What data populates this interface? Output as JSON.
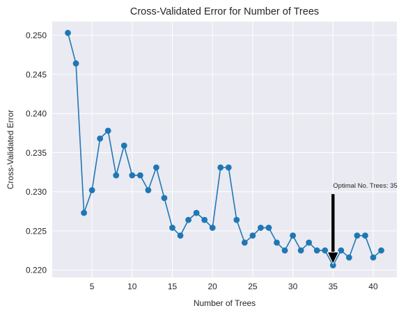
{
  "chart_data": {
    "type": "line",
    "title": "Cross-Validated Error for Number of Trees",
    "xlabel": "Number of Trees",
    "ylabel": "Cross-Validated Error",
    "xlim": [
      0.05,
      42.95
    ],
    "ylim": [
      0.21905,
      0.25175
    ],
    "xticks": [
      5,
      10,
      15,
      20,
      25,
      30,
      35,
      40
    ],
    "yticks": [
      0.22,
      0.225,
      0.23,
      0.235,
      0.24,
      0.245,
      0.25
    ],
    "ytick_labels": [
      "0.220",
      "0.225",
      "0.230",
      "0.235",
      "0.240",
      "0.245",
      "0.250"
    ],
    "grid": true,
    "x": [
      2,
      3,
      4,
      5,
      6,
      7,
      8,
      9,
      10,
      11,
      12,
      13,
      14,
      15,
      16,
      17,
      18,
      19,
      20,
      21,
      22,
      23,
      24,
      25,
      26,
      27,
      28,
      29,
      30,
      31,
      32,
      33,
      34,
      35,
      36,
      37,
      38,
      39,
      40,
      41
    ],
    "series": [
      {
        "values": [
          0.2503,
          0.2464,
          0.2273,
          0.2302,
          0.2368,
          0.2378,
          0.2321,
          0.2359,
          0.2321,
          0.2321,
          0.2302,
          0.2331,
          0.2292,
          0.2254,
          0.2244,
          0.2264,
          0.2273,
          0.2264,
          0.2254,
          0.2331,
          0.2331,
          0.2264,
          0.2235,
          0.2244,
          0.2254,
          0.2254,
          0.2235,
          0.2225,
          0.2244,
          0.2225,
          0.2235,
          0.2225,
          0.2225,
          0.2206,
          0.2225,
          0.2216,
          0.2244,
          0.2244,
          0.2216,
          0.2225
        ],
        "color": "#1f77b4"
      }
    ],
    "annotation": {
      "text": "Optimal No. Trees: 35",
      "x": 35,
      "y": 0.2206,
      "text_y": 0.2297
    },
    "style": {
      "background": "#eaeaf2",
      "grid_color": "#ffffff",
      "line_color": "#1f77b4",
      "arrow_color": "#000000"
    }
  }
}
